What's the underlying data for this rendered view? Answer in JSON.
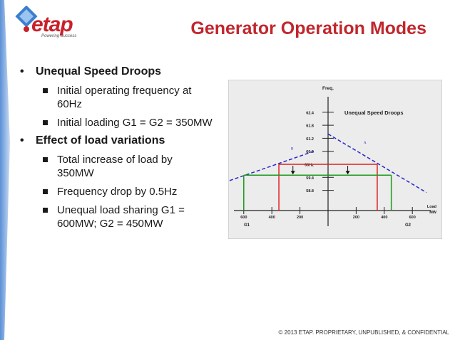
{
  "header": {
    "logo_text": "etap",
    "logo_tagline": "Powering Success",
    "title": "Generator Operation Modes"
  },
  "bullets": [
    {
      "label": "Unequal Speed Droops",
      "subitems": [
        "Initial operating frequency at 60Hz",
        "Initial loading G1 = G2 = 350MW"
      ]
    },
    {
      "label": "Effect of load variations",
      "subitems": [
        "Total increase of load by 350MW",
        "Frequency drop by 0.5Hz",
        "Unequal load sharing G1 = 600MW; G2 = 450MW"
      ]
    }
  ],
  "chart_data": {
    "type": "line",
    "title": "Unequal Speed Droops",
    "ylabel": "Freq.",
    "xlabel": "Load MW",
    "y_ticks": [
      "62.4",
      "61.8",
      "61.2",
      "60.6",
      "60Hz",
      "59.4",
      "58.8"
    ],
    "x_ticks_left": [
      "600",
      "400",
      "200"
    ],
    "x_ticks_right": [
      "200",
      "400",
      "600"
    ],
    "side_labels": [
      "G1",
      "G2"
    ],
    "line_labels": [
      "A",
      "B"
    ],
    "operating_points": [
      {
        "name": "initial",
        "frequency": 60,
        "G1": 350,
        "G2": 350
      },
      {
        "name": "final",
        "frequency": 59.5,
        "G1": 600,
        "G2": 450
      }
    ],
    "colors": {
      "droop_lines": "#2828c8",
      "initial": "#e02020",
      "final": "#1a9a1a"
    }
  },
  "footer": "© 2013 ETAP. PROPRIETARY, UNPUBLISHED, & CONFIDENTIAL"
}
